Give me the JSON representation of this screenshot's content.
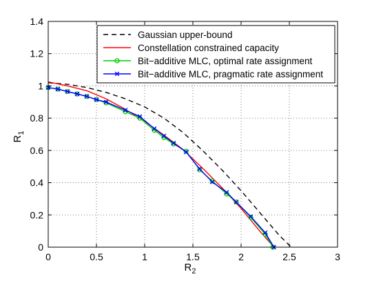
{
  "chart_data": {
    "type": "line",
    "title": "",
    "xlabel": "R",
    "xlabel_sub": "2",
    "ylabel": "R",
    "ylabel_sub": "1",
    "xlim": [
      0,
      3
    ],
    "ylim": [
      0,
      1.4
    ],
    "xticks": [
      "0",
      "0.5",
      "1",
      "1.5",
      "2",
      "2.5",
      "3"
    ],
    "yticks": [
      "0",
      "0.2",
      "0.4",
      "0.6",
      "0.8",
      "1",
      "1.2",
      "1.4"
    ],
    "grid": true,
    "legend_position": "top-right",
    "series": [
      {
        "name": "Gaussian upper-bound",
        "color": "#000000",
        "style": "dashed",
        "marker": "none",
        "x": [
          0,
          0.2,
          0.4,
          0.6,
          0.8,
          1.0,
          1.2,
          1.4,
          1.6,
          1.8,
          2.0,
          2.2,
          2.4,
          2.52
        ],
        "y": [
          1.02,
          1.01,
          0.99,
          0.96,
          0.92,
          0.87,
          0.8,
          0.71,
          0.6,
          0.48,
          0.35,
          0.21,
          0.07,
          0.0
        ]
      },
      {
        "name": "Constellation constrained capacity",
        "color": "#ff0000",
        "style": "solid",
        "marker": "none",
        "x": [
          0,
          0.2,
          0.4,
          0.6,
          0.8,
          1.0,
          1.2,
          1.4,
          1.6,
          1.8,
          2.0,
          2.2,
          2.34
        ],
        "y": [
          1.025,
          1.0,
          0.97,
          0.92,
          0.855,
          0.78,
          0.695,
          0.605,
          0.49,
          0.37,
          0.24,
          0.095,
          0.0
        ]
      },
      {
        "name": "Bit−additive MLC, optimal rate assignment",
        "color": "#00cc00",
        "style": "solid",
        "marker": "circle",
        "x": [
          0,
          0.1,
          0.2,
          0.3,
          0.4,
          0.5,
          0.6,
          0.8,
          0.95,
          1.1,
          1.2,
          1.3,
          1.43,
          1.57,
          1.7,
          1.85,
          1.95,
          2.1,
          2.25,
          2.33
        ],
        "y": [
          0.99,
          0.98,
          0.965,
          0.95,
          0.935,
          0.915,
          0.895,
          0.84,
          0.8,
          0.725,
          0.68,
          0.64,
          0.595,
          0.48,
          0.41,
          0.33,
          0.28,
          0.185,
          0.08,
          0.0
        ]
      },
      {
        "name": "Bit−additive MLC, pragmatic rate assignment",
        "color": "#0000ff",
        "style": "solid",
        "marker": "cross",
        "x": [
          0,
          0.1,
          0.2,
          0.3,
          0.4,
          0.5,
          0.6,
          0.8,
          0.95,
          1.1,
          1.2,
          1.3,
          1.43,
          1.57,
          1.7,
          1.85,
          1.95,
          2.1,
          2.25,
          2.34
        ],
        "y": [
          0.99,
          0.98,
          0.965,
          0.95,
          0.935,
          0.915,
          0.9,
          0.85,
          0.81,
          0.735,
          0.69,
          0.645,
          0.59,
          0.485,
          0.405,
          0.34,
          0.28,
          0.19,
          0.09,
          0.0
        ]
      }
    ]
  }
}
